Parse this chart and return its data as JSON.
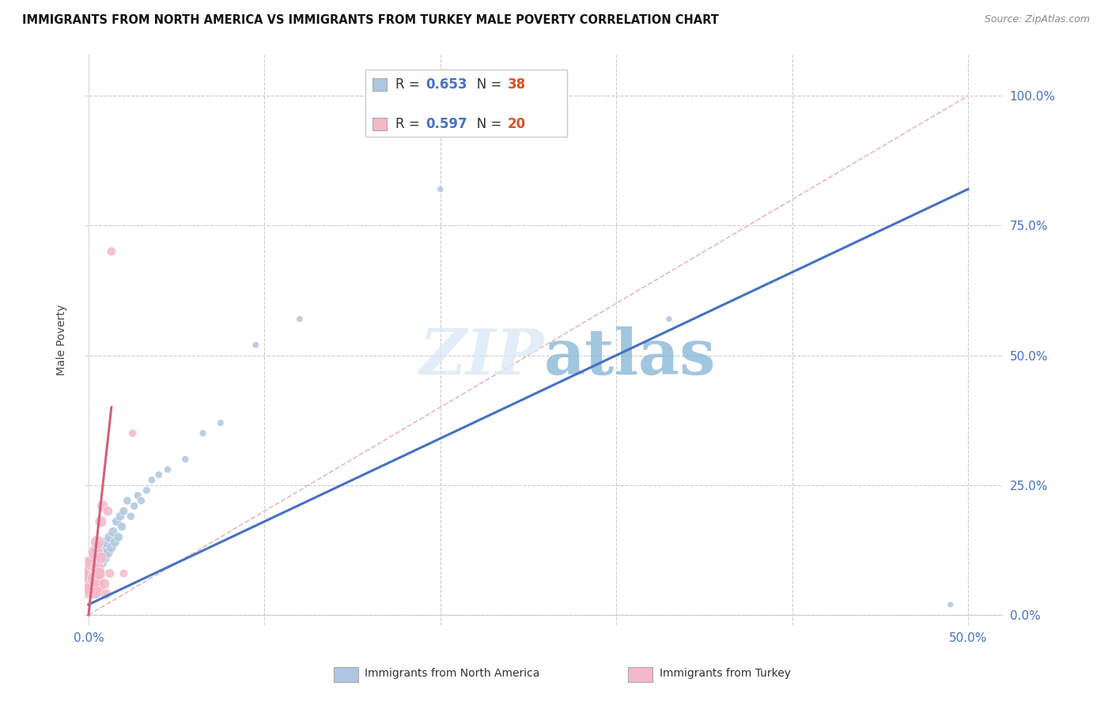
{
  "title": "IMMIGRANTS FROM NORTH AMERICA VS IMMIGRANTS FROM TURKEY MALE POVERTY CORRELATION CHART",
  "source": "Source: ZipAtlas.com",
  "ylabel": "Male Poverty",
  "x_ticklabels": [
    "0.0%",
    "",
    "",
    "",
    "",
    "50.0%"
  ],
  "x_ticks": [
    0,
    0.1,
    0.2,
    0.3,
    0.4,
    0.5
  ],
  "y_ticklabels": [
    "0.0%",
    "25.0%",
    "50.0%",
    "75.0%",
    "100.0%"
  ],
  "y_ticks": [
    0,
    0.25,
    0.5,
    0.75,
    1.0
  ],
  "xlim": [
    -0.002,
    0.52
  ],
  "ylim": [
    -0.02,
    1.08
  ],
  "legend_blue_label": "Immigrants from North America",
  "legend_pink_label": "Immigrants from Turkey",
  "R_blue": "0.653",
  "N_blue": "38",
  "R_pink": "0.597",
  "N_pink": "20",
  "blue_color": "#aec6df",
  "blue_line_color": "#4472c4",
  "pink_color": "#f4b8c8",
  "pink_line_color": "#d4607a",
  "diag_line_color": "#e8b8c0",
  "north_america_x": [
    0.001,
    0.002,
    0.003,
    0.004,
    0.005,
    0.005,
    0.006,
    0.007,
    0.008,
    0.009,
    0.01,
    0.011,
    0.012,
    0.013,
    0.014,
    0.015,
    0.016,
    0.017,
    0.018,
    0.019,
    0.02,
    0.022,
    0.024,
    0.026,
    0.028,
    0.03,
    0.033,
    0.036,
    0.04,
    0.045,
    0.055,
    0.065,
    0.075,
    0.095,
    0.12,
    0.2,
    0.33,
    0.49
  ],
  "north_america_y": [
    0.07,
    0.08,
    0.06,
    0.1,
    0.09,
    0.12,
    0.08,
    0.1,
    0.13,
    0.11,
    0.14,
    0.12,
    0.15,
    0.13,
    0.16,
    0.14,
    0.18,
    0.15,
    0.19,
    0.17,
    0.2,
    0.22,
    0.19,
    0.21,
    0.23,
    0.22,
    0.24,
    0.26,
    0.27,
    0.28,
    0.3,
    0.35,
    0.37,
    0.52,
    0.57,
    0.82,
    0.57,
    0.02
  ],
  "north_america_size": [
    200,
    160,
    130,
    110,
    100,
    90,
    85,
    80,
    75,
    70,
    65,
    62,
    58,
    55,
    52,
    50,
    48,
    46,
    44,
    42,
    40,
    38,
    36,
    35,
    34,
    33,
    32,
    31,
    30,
    29,
    28,
    27,
    26,
    25,
    24,
    23,
    22,
    21
  ],
  "turkey_x": [
    0.001,
    0.001,
    0.002,
    0.003,
    0.003,
    0.004,
    0.004,
    0.005,
    0.005,
    0.006,
    0.007,
    0.007,
    0.008,
    0.009,
    0.01,
    0.011,
    0.012,
    0.013,
    0.02,
    0.025
  ],
  "turkey_y": [
    0.06,
    0.09,
    0.08,
    0.05,
    0.1,
    0.07,
    0.12,
    0.09,
    0.14,
    0.08,
    0.11,
    0.18,
    0.21,
    0.06,
    0.04,
    0.2,
    0.08,
    0.7,
    0.08,
    0.35
  ],
  "turkey_size": [
    500,
    350,
    280,
    220,
    180,
    150,
    130,
    110,
    100,
    90,
    80,
    75,
    70,
    65,
    60,
    55,
    50,
    45,
    40,
    35
  ],
  "blue_line_x": [
    0.0,
    0.5
  ],
  "blue_line_y": [
    0.02,
    0.82
  ],
  "pink_line_x": [
    0.0,
    0.013
  ],
  "pink_line_y": [
    0.0,
    0.4
  ],
  "diag_line_x": [
    0.0,
    0.5
  ],
  "diag_line_y": [
    0.0,
    1.0
  ]
}
